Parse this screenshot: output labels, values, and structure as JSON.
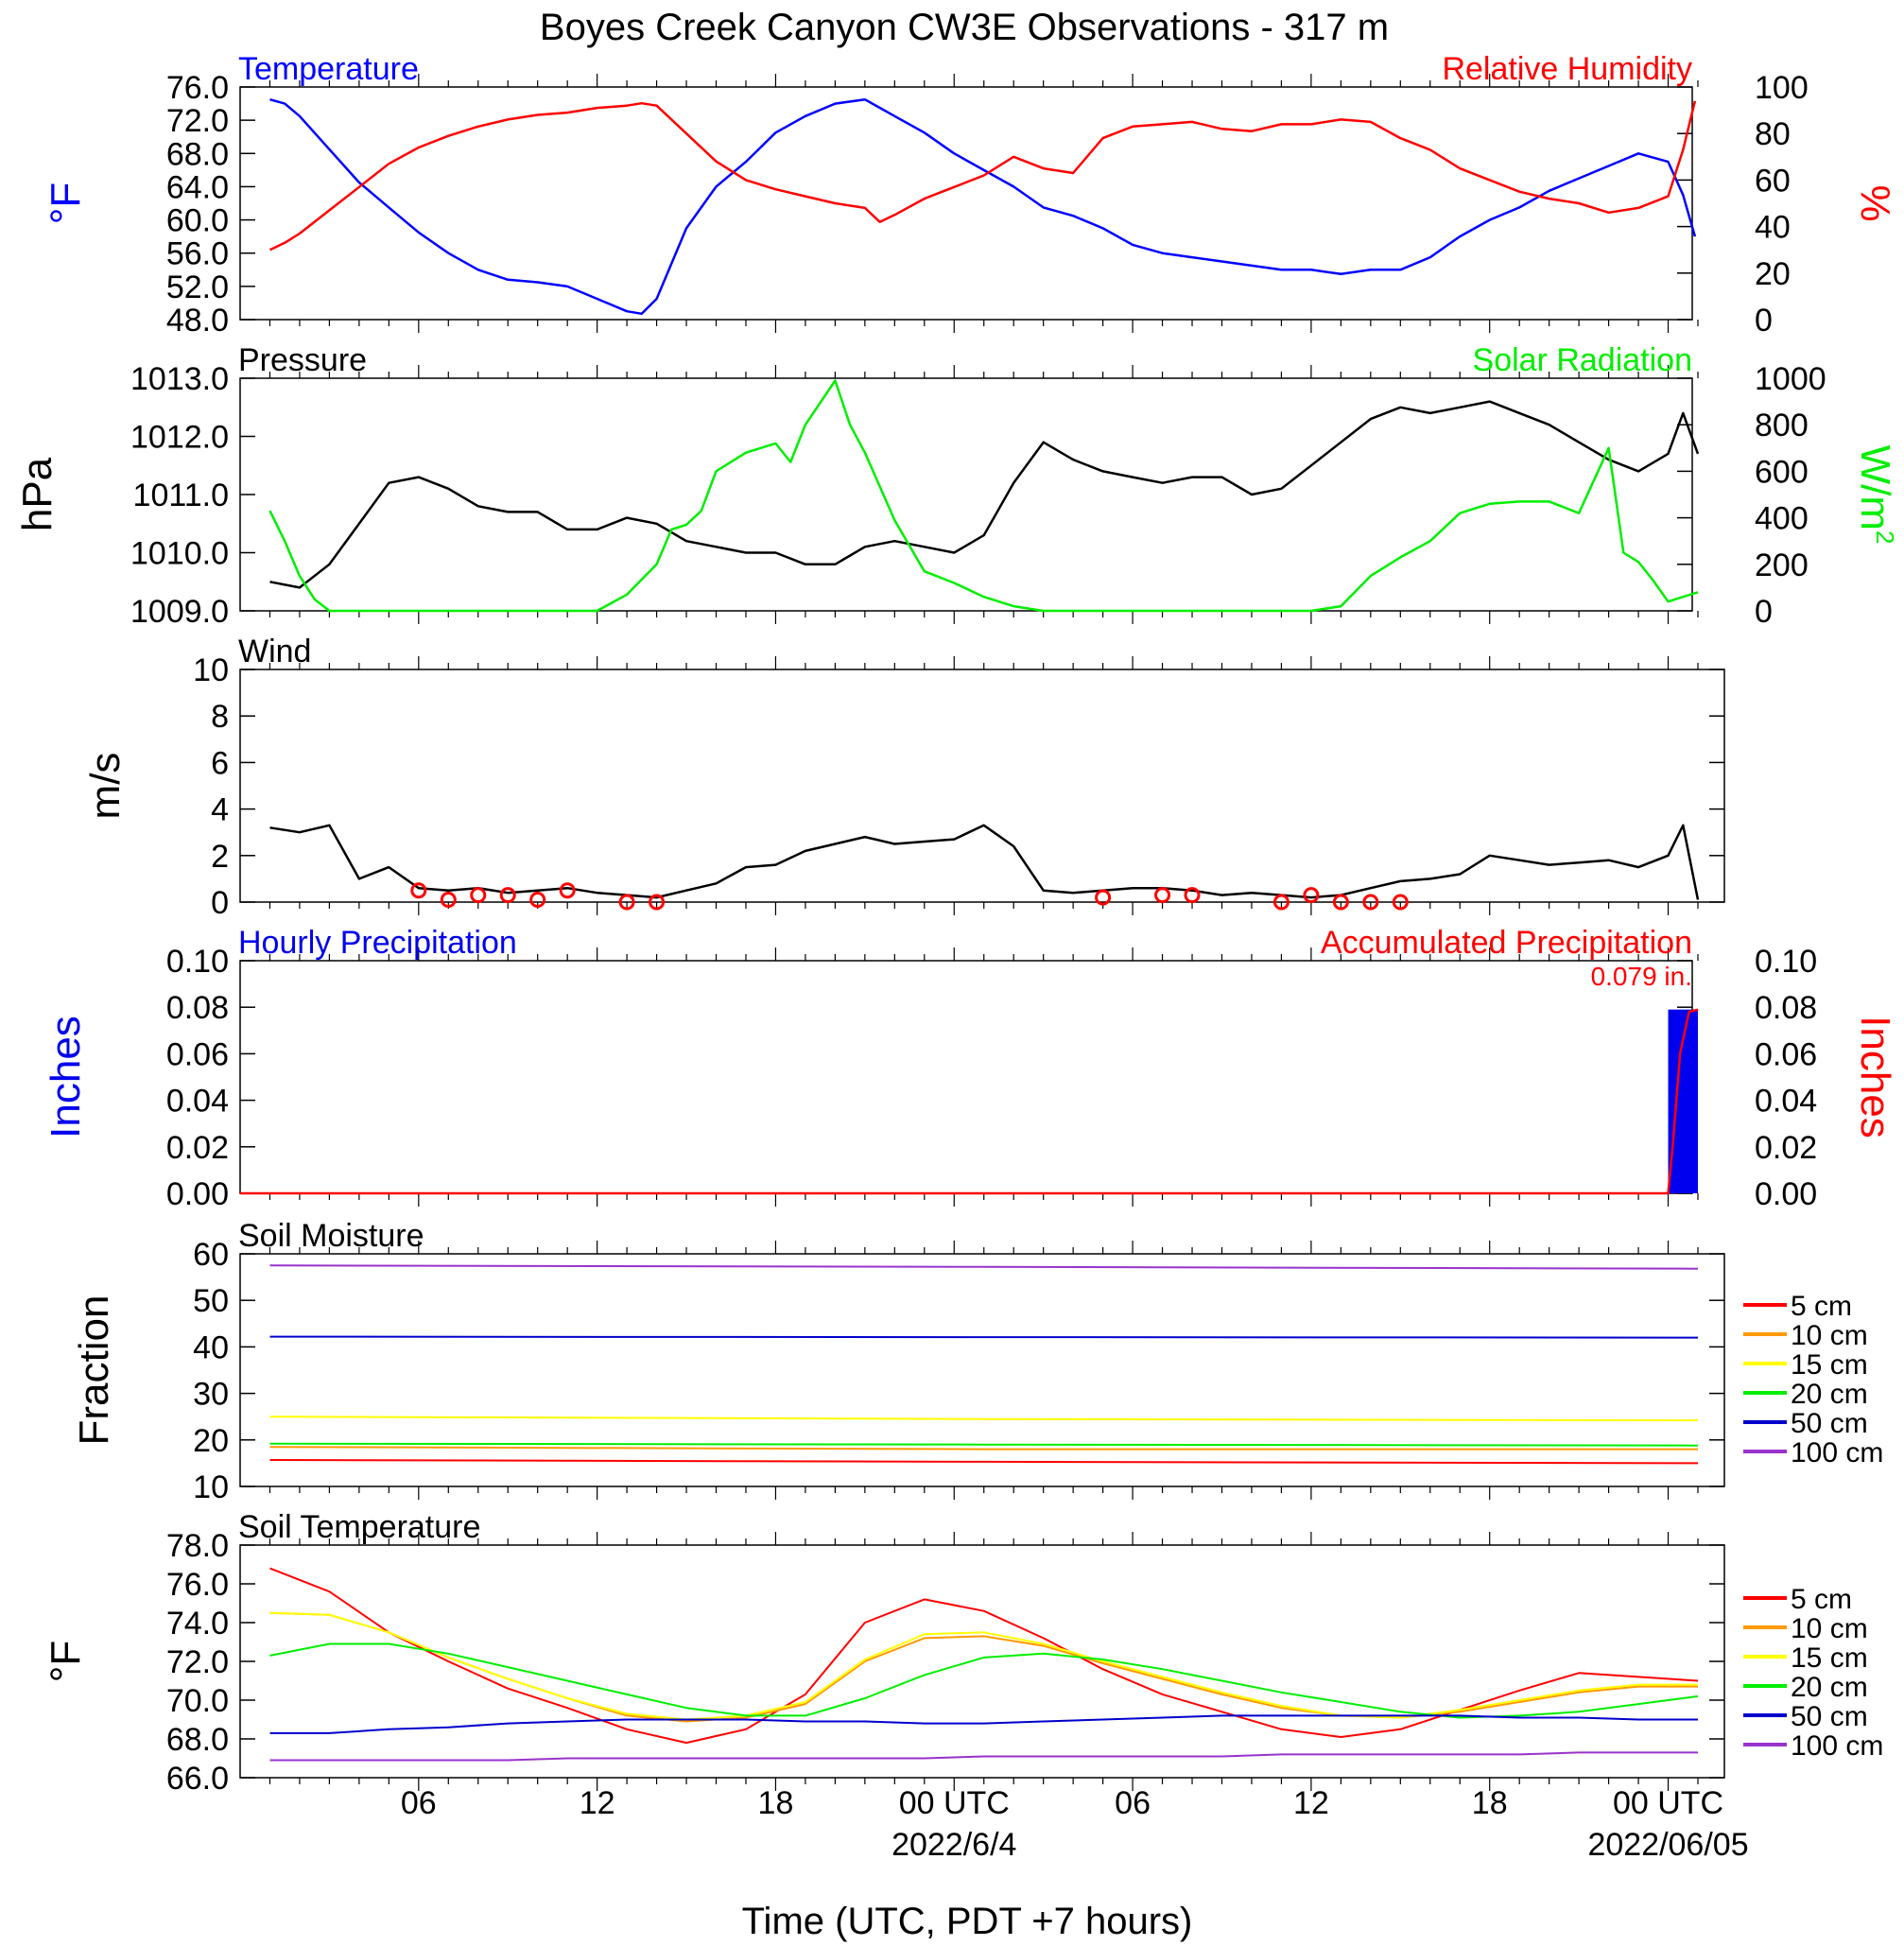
{
  "title": "Boyes Creek Canyon CW3E Observations - 317 m",
  "x_axis": {
    "label": "Time (UTC, PDT +7 hours)",
    "tick_labels": [
      "06",
      "12",
      "18",
      "00 UTC",
      "06",
      "12",
      "18",
      "00 UTC"
    ],
    "date_labels": [
      "2022/6/4",
      "2022/06/05"
    ]
  },
  "chart_data": [
    {
      "type": "line",
      "title_left": "Temperature",
      "title_right": "Relative Humidity",
      "y_label_left": "°F",
      "y_label_right": "%",
      "ylim_left": [
        48,
        76
      ],
      "ylim_right": [
        0,
        100
      ],
      "yticks_left": [
        "76.0",
        "72.0",
        "68.0",
        "64.0",
        "60.0",
        "56.0",
        "52.0",
        "48.0"
      ],
      "yticks_right": [
        "100",
        "80",
        "60",
        "40",
        "20",
        "0"
      ],
      "x_hours": [
        1,
        1.5,
        2,
        3,
        4,
        5,
        6,
        7,
        8,
        9,
        10,
        11,
        12,
        13,
        13.5,
        14,
        15,
        16,
        17,
        18,
        19,
        20,
        21,
        21.5,
        22,
        23,
        24,
        25,
        26,
        27,
        28,
        29,
        30,
        31,
        32,
        33,
        34,
        35,
        36,
        37,
        38,
        39,
        40,
        41,
        42,
        43,
        44,
        45,
        46,
        47,
        48,
        48.5,
        48.9
      ],
      "series": [
        {
          "name": "Temperature",
          "color": "#0000ff",
          "axis": "left",
          "values": [
            74.5,
            74,
            72.5,
            68.5,
            64.5,
            61.5,
            58.5,
            56,
            54,
            52.8,
            52.5,
            52,
            50.5,
            49,
            48.7,
            50.5,
            59,
            64,
            67,
            70.5,
            72.5,
            74,
            74.5,
            73.5,
            72.5,
            70.5,
            68,
            66,
            64,
            61.5,
            60.5,
            59,
            57,
            56,
            55.5,
            55,
            54.5,
            54,
            54,
            53.5,
            54,
            54,
            55.5,
            58,
            60,
            61.5,
            63.5,
            65,
            66.5,
            68,
            67,
            63,
            58
          ]
        },
        {
          "name": "Relative Humidity",
          "color": "#ff0000",
          "axis": "right",
          "values": [
            30,
            33,
            37,
            47,
            57,
            67,
            74,
            79,
            83,
            86,
            88,
            89,
            91,
            92,
            93,
            92,
            80,
            68,
            60,
            56,
            53,
            50,
            48,
            42,
            45,
            52,
            57,
            62,
            70,
            65,
            63,
            78,
            83,
            84,
            85,
            82,
            81,
            84,
            84,
            86,
            85,
            78,
            73,
            65,
            60,
            55,
            52,
            50,
            46,
            48,
            53,
            73,
            94
          ]
        }
      ]
    },
    {
      "type": "line",
      "title_left": "Pressure",
      "title_right": "Solar Radiation",
      "y_label_left": "hPa",
      "y_label_right": "W/m",
      "y_label_right_sup": "2",
      "ylim_left": [
        1009,
        1013
      ],
      "ylim_right": [
        0,
        1000
      ],
      "yticks_left": [
        "1013.0",
        "1012.0",
        "1011.0",
        "1010.0",
        "1009.0"
      ],
      "yticks_right": [
        "1000",
        "800",
        "600",
        "400",
        "200",
        "0"
      ],
      "series": [
        {
          "name": "Pressure",
          "color": "#000000",
          "axis": "left",
          "x_hours": [
            1,
            2,
            3,
            4,
            5,
            6,
            7,
            8,
            9,
            10,
            11,
            12,
            13,
            14,
            15,
            16,
            17,
            18,
            19,
            20,
            21,
            22,
            23,
            24,
            25,
            26,
            27,
            28,
            29,
            30,
            31,
            32,
            33,
            34,
            35,
            36,
            37,
            38,
            39,
            40,
            41,
            42,
            43,
            44,
            45,
            46,
            47,
            48,
            48.5,
            49
          ],
          "values": [
            1009.5,
            1009.4,
            1009.8,
            1010.5,
            1011.2,
            1011.3,
            1011.1,
            1010.8,
            1010.7,
            1010.7,
            1010.4,
            1010.4,
            1010.6,
            1010.5,
            1010.2,
            1010.1,
            1010.0,
            1010.0,
            1009.8,
            1009.8,
            1010.1,
            1010.2,
            1010.1,
            1010.0,
            1010.3,
            1011.2,
            1011.9,
            1011.6,
            1011.4,
            1011.3,
            1011.2,
            1011.3,
            1011.3,
            1011.0,
            1011.1,
            1011.5,
            1011.9,
            1012.3,
            1012.5,
            1012.4,
            1012.5,
            1012.6,
            1012.4,
            1012.2,
            1011.9,
            1011.6,
            1011.4,
            1011.7,
            1012.4,
            1011.7
          ]
        },
        {
          "name": "Solar Radiation",
          "color": "#00ee00",
          "axis": "right",
          "x_hours": [
            1,
            1.5,
            2,
            2.5,
            3,
            12,
            13,
            14,
            14.5,
            15,
            15.5,
            16,
            17,
            18,
            18.5,
            19,
            20,
            20.5,
            21,
            22,
            23,
            24,
            25,
            26,
            27,
            36,
            37,
            38,
            39,
            40,
            41,
            42,
            43,
            44,
            45,
            46,
            46.5,
            47,
            47.5,
            48,
            48.5,
            49
          ],
          "values": [
            430,
            300,
            150,
            50,
            0,
            0,
            70,
            200,
            350,
            370,
            430,
            600,
            680,
            720,
            640,
            800,
            990,
            800,
            680,
            390,
            170,
            120,
            60,
            20,
            0,
            0,
            20,
            150,
            230,
            300,
            420,
            460,
            470,
            470,
            420,
            700,
            250,
            210,
            130,
            40,
            60,
            80
          ]
        }
      ]
    },
    {
      "type": "line",
      "title_left": "Wind",
      "y_label_left": "m/s",
      "ylim_left": [
        0,
        10
      ],
      "yticks_left": [
        "10",
        "8",
        "6",
        "4",
        "2",
        "0"
      ],
      "x_hours": [
        1,
        2,
        3,
        4,
        5,
        6,
        7,
        8,
        9,
        10,
        11,
        12,
        13,
        14,
        15,
        16,
        17,
        18,
        19,
        20,
        21,
        22,
        23,
        24,
        25,
        26,
        27,
        28,
        29,
        30,
        31,
        32,
        33,
        34,
        35,
        36,
        37,
        38,
        39,
        40,
        41,
        42,
        43,
        44,
        45,
        46,
        47,
        48,
        48.5,
        49
      ],
      "series": [
        {
          "name": "Wind Speed",
          "color": "#000000",
          "values": [
            3.2,
            3.0,
            3.3,
            1.0,
            1.5,
            0.6,
            0.5,
            0.6,
            0.4,
            0.5,
            0.6,
            0.4,
            0.3,
            0.2,
            0.5,
            0.8,
            1.5,
            1.6,
            2.2,
            2.5,
            2.8,
            2.5,
            2.6,
            2.7,
            3.3,
            2.4,
            0.5,
            0.4,
            0.5,
            0.6,
            0.6,
            0.5,
            0.3,
            0.4,
            0.3,
            0.2,
            0.3,
            0.6,
            0.9,
            1.0,
            1.2,
            2.0,
            1.8,
            1.6,
            1.7,
            1.8,
            1.5,
            2.0,
            3.3,
            0.1
          ]
        }
      ]
    },
    {
      "type": "bar",
      "title_left": "Hourly Precipitation",
      "title_right": "Accumulated Precipitation",
      "annotation": "0.079 in.",
      "y_label_left": "Inches",
      "y_label_right": "Inches",
      "ylim_left": [
        0,
        0.1
      ],
      "ylim_right": [
        0,
        0.1
      ],
      "yticks_left": [
        "0.10",
        "0.08",
        "0.06",
        "0.04",
        "0.02",
        "0.00"
      ],
      "yticks_right": [
        "0.10",
        "0.08",
        "0.06",
        "0.04",
        "0.02",
        "0.00"
      ],
      "series": [
        {
          "name": "Hourly Precipitation",
          "color": "#0000ee",
          "x_hours": [
            48
          ],
          "values": [
            0.079
          ]
        },
        {
          "name": "Accumulated Precipitation",
          "color": "#ff0000",
          "x_hours": [
            0,
            48,
            48.15,
            48.4,
            48.7,
            49
          ],
          "values": [
            0,
            0,
            0.02,
            0.06,
            0.078,
            0.079
          ]
        }
      ]
    },
    {
      "type": "line",
      "title_left": "Soil Moisture",
      "y_label_left": "Fraction",
      "ylim_left": [
        10,
        60
      ],
      "yticks_left": [
        "60",
        "50",
        "40",
        "30",
        "20",
        "10"
      ],
      "x_hours": [
        1,
        25,
        49
      ],
      "series": [
        {
          "name": "5 cm",
          "color": "#ff0000",
          "values": [
            15.7,
            15.3,
            15.0
          ]
        },
        {
          "name": "10 cm",
          "color": "#ff9900",
          "values": [
            18.5,
            18.0,
            18.0
          ]
        },
        {
          "name": "15 cm",
          "color": "#ffff00",
          "values": [
            25.0,
            24.5,
            24.2
          ]
        },
        {
          "name": "20 cm",
          "color": "#00ee00",
          "values": [
            19.2,
            19.0,
            18.8
          ]
        },
        {
          "name": "50 cm",
          "color": "#0000cc",
          "values": [
            42.2,
            42.1,
            42.0
          ]
        },
        {
          "name": "100 cm",
          "color": "#9933cc",
          "values": [
            57.5,
            57.2,
            56.8
          ]
        }
      ]
    },
    {
      "type": "line",
      "title_left": "Soil Temperature",
      "y_label_left": "°F",
      "ylim_left": [
        66,
        78
      ],
      "yticks_left": [
        "78.0",
        "76.0",
        "74.0",
        "72.0",
        "70.0",
        "68.0",
        "66.0"
      ],
      "x_hours": [
        1,
        3,
        5,
        7,
        9,
        11,
        13,
        15,
        17,
        19,
        21,
        23,
        25,
        27,
        29,
        31,
        33,
        35,
        37,
        39,
        41,
        43,
        45,
        47,
        49
      ],
      "series": [
        {
          "name": "5 cm",
          "color": "#ff0000",
          "values": [
            76.8,
            75.6,
            73.5,
            72.0,
            70.6,
            69.6,
            68.5,
            67.8,
            68.5,
            70.3,
            74.0,
            75.2,
            74.6,
            73.2,
            71.6,
            70.3,
            69.4,
            68.5,
            68.1,
            68.5,
            69.5,
            70.5,
            71.4,
            71.2,
            71.0
          ]
        },
        {
          "name": "10 cm",
          "color": "#ff9900",
          "values": [
            74.5,
            74.4,
            73.5,
            72.2,
            71.1,
            70.1,
            69.2,
            68.9,
            69.1,
            69.8,
            72.0,
            73.2,
            73.3,
            72.8,
            71.9,
            71.1,
            70.3,
            69.6,
            69.2,
            69.1,
            69.4,
            69.9,
            70.4,
            70.7,
            70.7
          ]
        },
        {
          "name": "15 cm",
          "color": "#ffff00",
          "values": [
            74.5,
            74.4,
            73.5,
            72.2,
            71.1,
            70.1,
            69.3,
            69.0,
            69.2,
            69.9,
            72.1,
            73.4,
            73.5,
            72.9,
            72.0,
            71.2,
            70.4,
            69.7,
            69.2,
            69.1,
            69.5,
            70.0,
            70.5,
            70.8,
            70.8
          ]
        },
        {
          "name": "20 cm",
          "color": "#00ee00",
          "values": [
            72.3,
            72.9,
            72.9,
            72.4,
            71.7,
            71.0,
            70.3,
            69.6,
            69.2,
            69.2,
            70.1,
            71.3,
            72.2,
            72.4,
            72.1,
            71.6,
            71.0,
            70.4,
            69.9,
            69.4,
            69.1,
            69.2,
            69.4,
            69.8,
            70.2
          ]
        },
        {
          "name": "50 cm",
          "color": "#0000cc",
          "values": [
            68.3,
            68.3,
            68.5,
            68.6,
            68.8,
            68.9,
            69.0,
            69.0,
            69.0,
            68.9,
            68.9,
            68.8,
            68.8,
            68.9,
            69.0,
            69.1,
            69.2,
            69.2,
            69.2,
            69.2,
            69.2,
            69.1,
            69.1,
            69.0,
            69.0
          ]
        },
        {
          "name": "100 cm",
          "color": "#9933cc",
          "values": [
            66.9,
            66.9,
            66.9,
            66.9,
            66.9,
            67.0,
            67.0,
            67.0,
            67.0,
            67.0,
            67.0,
            67.0,
            67.1,
            67.1,
            67.1,
            67.1,
            67.1,
            67.2,
            67.2,
            67.2,
            67.2,
            67.2,
            67.3,
            67.3,
            67.3
          ]
        }
      ]
    }
  ],
  "wind_barbs": {
    "color": "#ff0000",
    "calm_hours": [
      6,
      7,
      8,
      9,
      10,
      11,
      13,
      14,
      29,
      31,
      32,
      35,
      36,
      37,
      38,
      39
    ],
    "calm_speeds": [
      0.5,
      0.1,
      0.3,
      0.3,
      0.1,
      0.5,
      0.0,
      0.0,
      0.2,
      0.3,
      0.3,
      0.0,
      0.3,
      0.0,
      0.0,
      0.0
    ]
  },
  "legend": {
    "entries": [
      {
        "label": "5 cm",
        "color": "#ff0000"
      },
      {
        "label": "10 cm",
        "color": "#ff9900"
      },
      {
        "label": "15 cm",
        "color": "#ffff00"
      },
      {
        "label": "20 cm",
        "color": "#00ee00"
      },
      {
        "label": "50 cm",
        "color": "#0000cc"
      },
      {
        "label": "100 cm",
        "color": "#9933cc"
      }
    ]
  }
}
